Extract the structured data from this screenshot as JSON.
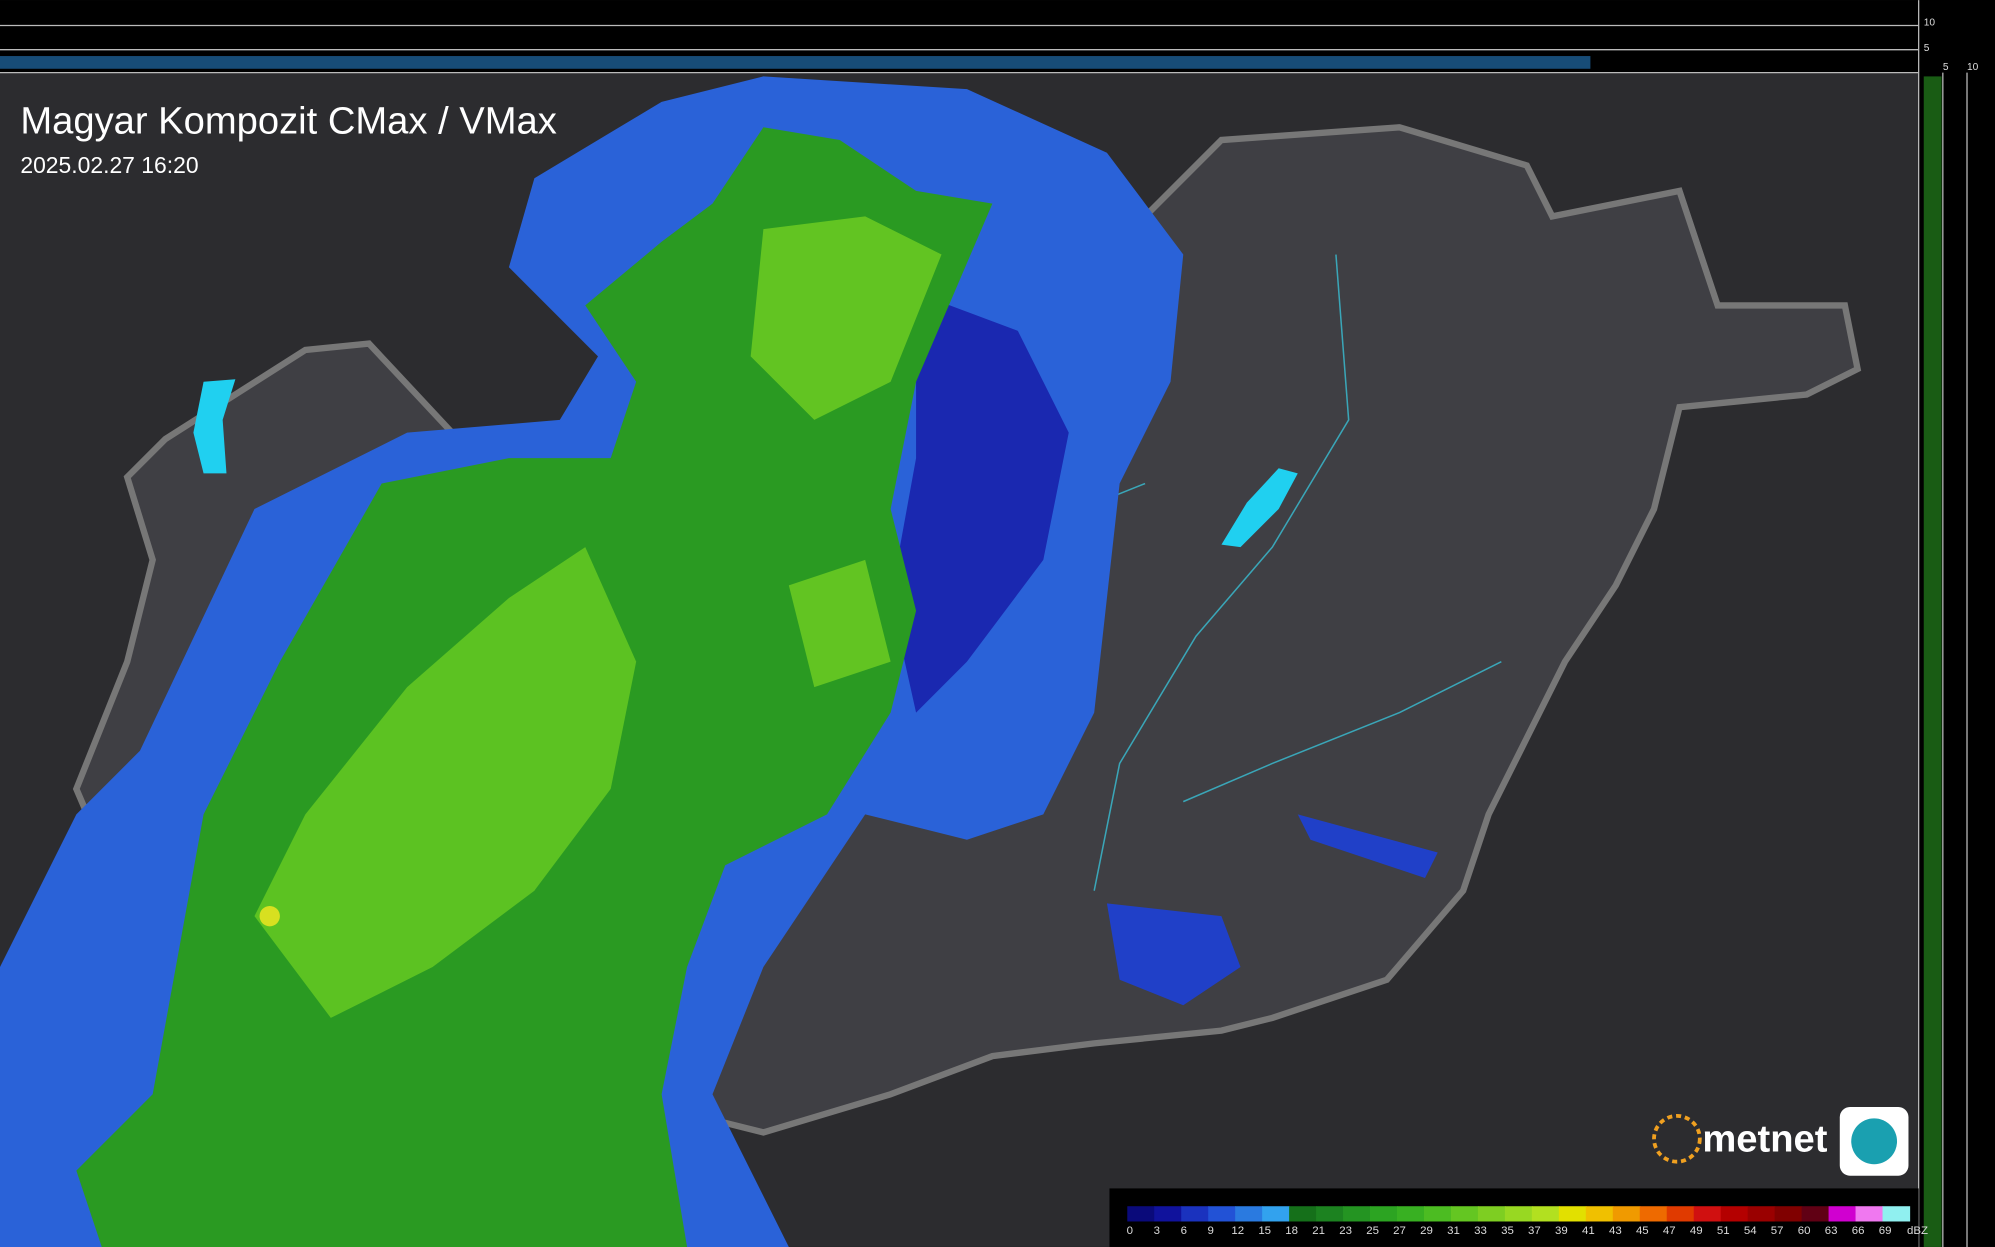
{
  "header": {
    "title": "Magyar Kompozit CMax / VMax",
    "timestamp": "2025.02.27 16:20"
  },
  "side_scale": {
    "top_labels": [
      10,
      5
    ],
    "right_labels": [
      5,
      10
    ]
  },
  "legend": {
    "ticks": [
      0,
      3,
      6,
      9,
      12,
      15,
      18,
      21,
      23,
      25,
      27,
      29,
      31,
      33,
      35,
      37,
      39,
      41,
      43,
      45,
      47,
      49,
      51,
      54,
      57,
      60,
      63,
      66,
      69
    ],
    "colors": [
      "#0a0a7a",
      "#10129c",
      "#1a32be",
      "#2252d6",
      "#2a7ae0",
      "#32a2ee",
      "#15701a",
      "#1c8220",
      "#249422",
      "#2ca422",
      "#38b022",
      "#4cbc22",
      "#64c622",
      "#7ece22",
      "#98d822",
      "#b2e020",
      "#e2e000",
      "#f0c000",
      "#f09a00",
      "#ee6a00",
      "#e03a00",
      "#d01010",
      "#b40000",
      "#9a0000",
      "#800000",
      "#600014",
      "#d000d0",
      "#f078f0",
      "#90f0f0"
    ],
    "unit": "dBZ"
  },
  "logo": {
    "text": "metnet"
  }
}
